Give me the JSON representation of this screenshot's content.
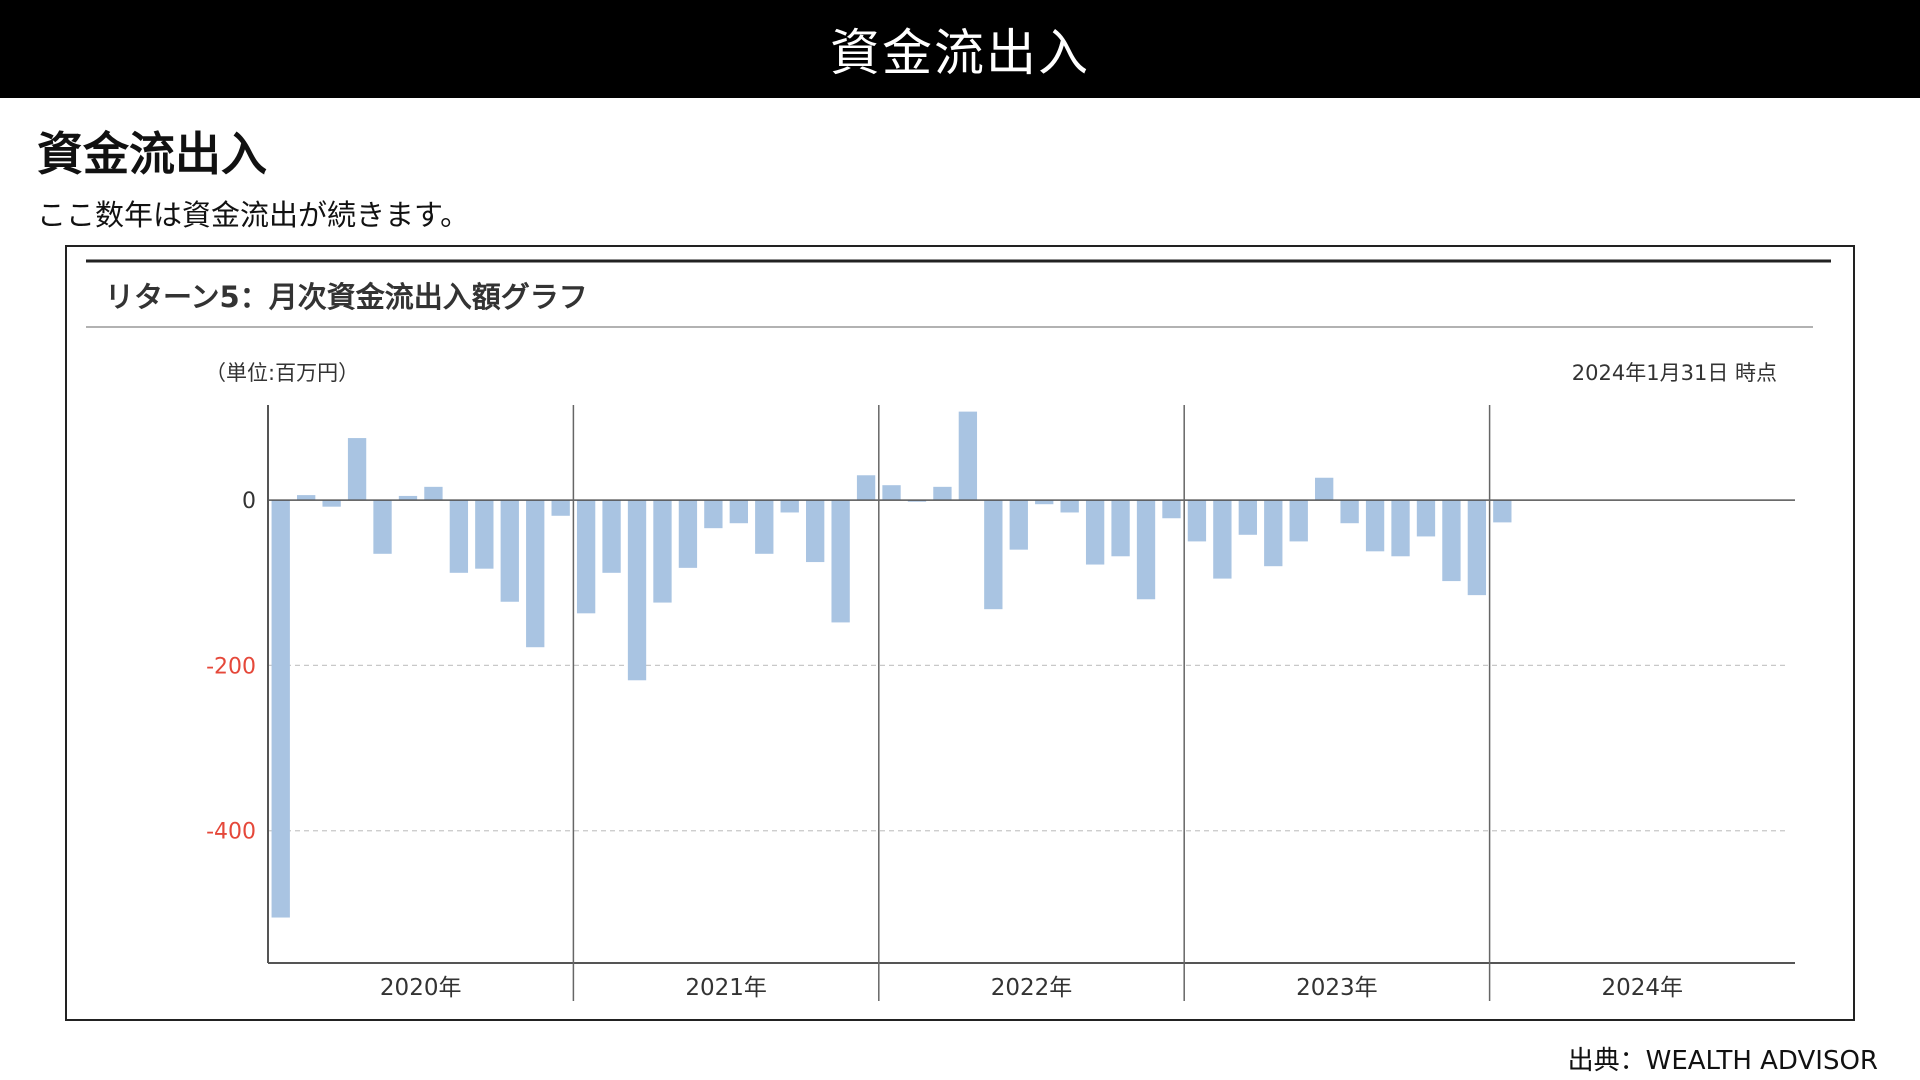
{
  "page": {
    "banner_title": "資金流出入",
    "section_title": "資金流出入",
    "lead": "ここ数年は資金流出が続きます。",
    "source": "出典：WEALTH ADVISOR"
  },
  "chart_data": {
    "type": "bar",
    "title": "リターン5：月次資金流出入額グラフ",
    "unit_label": "（単位:百万円）",
    "as_of": "2024年1月31日 時点",
    "ylim": [
      -560,
      115
    ],
    "yticks": [
      {
        "value": 0,
        "label": "0"
      },
      {
        "value": -200,
        "label": "-200"
      },
      {
        "value": -400,
        "label": "-400"
      }
    ],
    "year_labels": [
      "2020年",
      "2021年",
      "2022年",
      "2023年",
      "2024年"
    ],
    "bar_color": "#a9c4e2",
    "negative_tick_color": "#e5483a",
    "grid": "dashed",
    "values": [
      -505,
      6,
      -8,
      75,
      -65,
      5,
      16,
      -88,
      -83,
      -123,
      -178,
      -19,
      -137,
      -88,
      -218,
      -124,
      -82,
      -34,
      -28,
      -65,
      -15,
      -75,
      -148,
      30,
      18,
      -2,
      16,
      107,
      -132,
      -60,
      -5,
      -15,
      -78,
      -68,
      -120,
      -22,
      -50,
      -95,
      -42,
      -80,
      -50,
      27,
      -28,
      -62,
      -68,
      -44,
      -98,
      -115,
      -27
    ]
  }
}
